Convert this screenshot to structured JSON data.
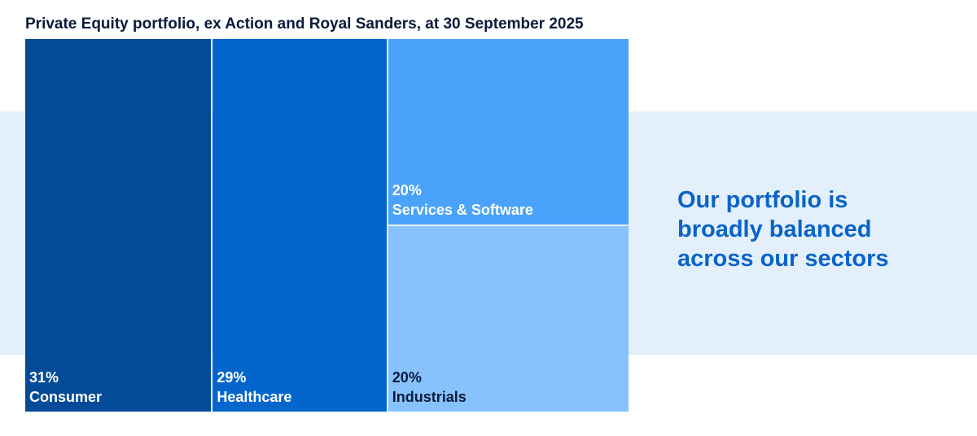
{
  "chart_data": {
    "type": "treemap",
    "title": "Private Equity portfolio, ex Action and Royal Sanders, at 30 September 2025",
    "unit": "%",
    "segments": [
      {
        "label": "Consumer",
        "value": 31,
        "value_label": "31%",
        "color": "#034a98",
        "text_color": "#ffffff"
      },
      {
        "label": "Healthcare",
        "value": 29,
        "value_label": "29%",
        "color": "#0466cd",
        "text_color": "#ffffff"
      },
      {
        "label": "Services & Software",
        "value": 20,
        "value_label": "20%",
        "color": "#4aa3fb",
        "text_color": "#ffffff"
      },
      {
        "label": "Industrials",
        "value": 20,
        "value_label": "20%",
        "color": "#87c2fd",
        "text_color": "#0a1a3a"
      }
    ]
  },
  "tagline": {
    "line1": "Our portfolio is",
    "line2": "broadly balanced",
    "line3": "across our sectors"
  },
  "colors": {
    "band": "#e3f0fc",
    "tagline": "#0a63c9",
    "title": "#0a1a3a"
  }
}
